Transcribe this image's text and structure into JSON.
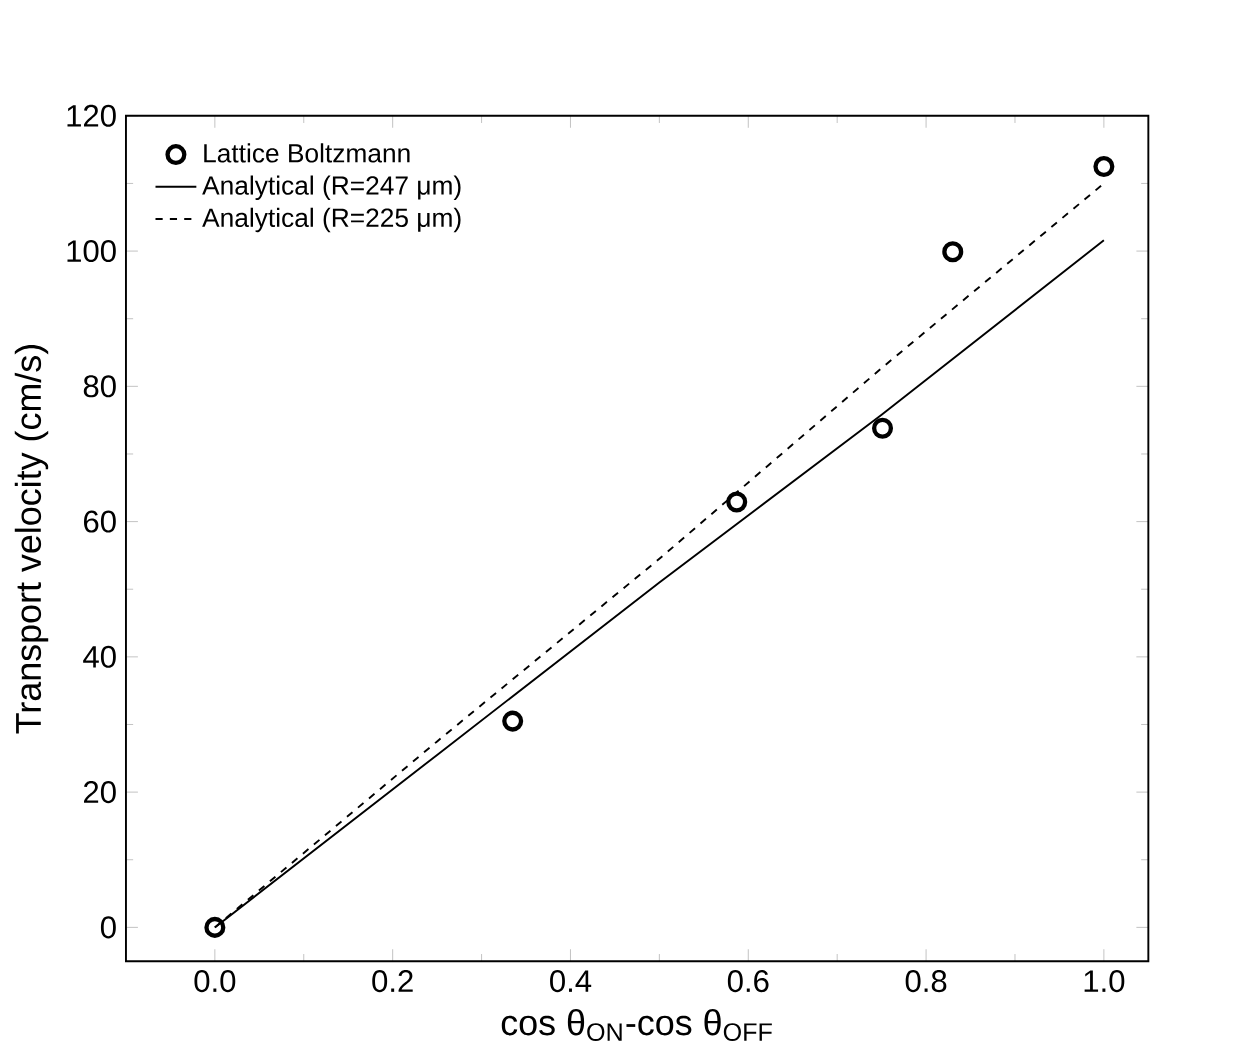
{
  "chart_data": {
    "type": "line",
    "xlabel": "cos θ$_{ON}$-cos θ$_{OFF}$",
    "ylabel": "Transport velocity (cm/s)",
    "xlim": [
      -0.1,
      1.05
    ],
    "ylim": [
      -5,
      120
    ],
    "xticks": [
      {
        "value": 0,
        "label": "0.0"
      },
      0.2,
      0.4,
      0.6,
      0.8,
      {
        "value": 1,
        "label": "1.0"
      }
    ],
    "yticks": [
      0,
      20,
      40,
      60,
      80,
      100,
      120
    ],
    "grid": false,
    "legend": "top left",
    "series": [
      {
        "name": "Lattice Boltzmann",
        "type": "scatter",
        "marker": "circle",
        "color": "#000000",
        "x": [
          0,
          0.335,
          0.587,
          0.751,
          0.83,
          1.0
        ],
        "values": [
          0,
          30.5,
          62.9,
          73.8,
          99.9,
          112.5
        ]
      },
      {
        "name": "Analytical (R=247 μm)",
        "line_style": "solid",
        "color": "#000000",
        "x": [
          0,
          0.25,
          0.5,
          0.75,
          1.0
        ],
        "values": [
          0,
          25.5,
          51,
          75.8,
          101.6
        ]
      },
      {
        "name": "Analytical (R=225 μm)",
        "line_style": "dashed",
        "color": "#000000",
        "x": [
          0,
          0.25,
          0.5,
          0.75,
          1.0
        ],
        "values": [
          0,
          27.5,
          54.5,
          82.7,
          110
        ]
      }
    ]
  }
}
